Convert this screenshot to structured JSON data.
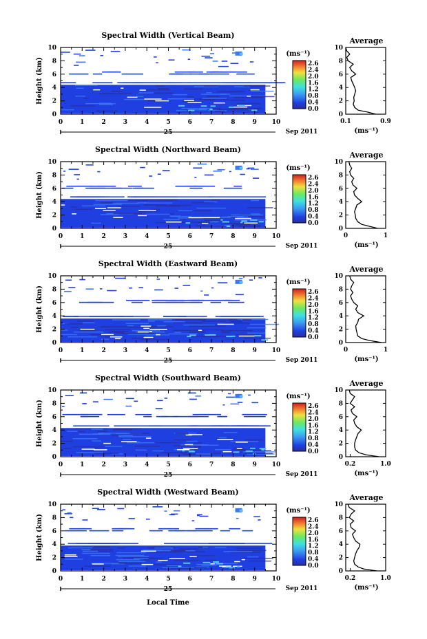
{
  "figure": {
    "x_axis_label": "Local Time",
    "date_label": "25",
    "month_year": "Sep 2011",
    "y_axis_label": "Height (km)",
    "unit_label": "(ms⁻¹)",
    "average_title": "Average",
    "colorbar_ticks": [
      "2.6",
      "2.4",
      "2.0",
      "1.6",
      "1.2",
      "0.8",
      "0.4",
      "0.0"
    ],
    "x_ticks": [
      "0",
      "1",
      "2",
      "3",
      "4",
      "5",
      "6",
      "7",
      "8",
      "9",
      "10"
    ],
    "y_ticks": [
      "0",
      "2",
      "4",
      "6",
      "8",
      "10"
    ],
    "colors": {
      "low": "#1f3fe0",
      "mid": "#3c78f0",
      "cyan": "#58c8f0",
      "band_dark": "#2a2e9a",
      "background": "#ffffff"
    }
  },
  "chart_data": [
    {
      "type": "heatmap",
      "title": "Spectral Width (Vertical Beam)",
      "x_range": [
        0,
        10
      ],
      "y_range": [
        0,
        10
      ],
      "data_extent_hours": [
        0,
        9.5
      ],
      "dense_layer_top_km": 4.4,
      "colorbar_range": [
        0,
        2.8
      ],
      "average_profile": {
        "title": "Average",
        "xlabel": "(ms⁻¹)",
        "x_ticks": [
          "0.1",
          "0.9"
        ],
        "x_range": [
          0.1,
          0.9
        ],
        "height_km": [
          0,
          0.3,
          0.6,
          1,
          1.5,
          2,
          2.5,
          3,
          3.5,
          4,
          4.5,
          5,
          5.5,
          6,
          6.5,
          7,
          7.5,
          8,
          8.5,
          9,
          9.5,
          10
        ],
        "width_ms": [
          0.7,
          0.55,
          0.35,
          0.28,
          0.25,
          0.27,
          0.26,
          0.28,
          0.3,
          0.28,
          0.25,
          0.22,
          0.2,
          0.3,
          0.22,
          0.18,
          0.25,
          0.15,
          0.12,
          0.18,
          0.12,
          0.1
        ]
      }
    },
    {
      "type": "heatmap",
      "title": "Spectral Width (Northward Beam)",
      "x_range": [
        0,
        10
      ],
      "y_range": [
        0,
        10
      ],
      "data_extent_hours": [
        0,
        9.5
      ],
      "dense_layer_top_km": 4.4,
      "colorbar_range": [
        0,
        2.8
      ],
      "average_profile": {
        "title": "Average",
        "xlabel": "(ms⁻¹)",
        "x_ticks": [
          "0",
          "1"
        ],
        "x_range": [
          0,
          1
        ],
        "height_km": [
          0,
          0.3,
          0.6,
          1,
          1.5,
          2,
          2.5,
          3,
          3.5,
          4,
          4.5,
          5,
          5.5,
          6,
          6.5,
          7,
          7.5,
          8,
          8.5,
          9,
          9.5,
          10
        ],
        "width_ms": [
          0.8,
          0.6,
          0.4,
          0.3,
          0.25,
          0.24,
          0.22,
          0.25,
          0.28,
          0.4,
          0.3,
          0.22,
          0.2,
          0.28,
          0.18,
          0.15,
          0.2,
          0.12,
          0.1,
          0.15,
          0.1,
          0.08
        ]
      }
    },
    {
      "type": "heatmap",
      "title": "Spectral Width (Eastward Beam)",
      "x_range": [
        0,
        10
      ],
      "y_range": [
        0,
        10
      ],
      "data_extent_hours": [
        0,
        9.5
      ],
      "dense_layer_top_km": 3.6,
      "colorbar_range": [
        0,
        2.8
      ],
      "average_profile": {
        "title": "Average",
        "xlabel": "(ms⁻¹)",
        "x_ticks": [
          "0",
          "1"
        ],
        "x_range": [
          0,
          1
        ],
        "height_km": [
          0,
          0.3,
          0.6,
          1,
          1.5,
          2,
          2.5,
          3,
          3.5,
          4,
          4.5,
          5,
          5.5,
          6,
          6.5,
          7,
          7.5,
          8,
          8.5,
          9,
          9.5,
          10
        ],
        "width_ms": [
          0.9,
          0.6,
          0.4,
          0.3,
          0.28,
          0.26,
          0.25,
          0.3,
          0.32,
          0.45,
          0.3,
          0.25,
          0.3,
          0.2,
          0.15,
          0.12,
          0.18,
          0.12,
          0.15,
          0.2,
          0.12,
          0.1
        ]
      }
    },
    {
      "type": "heatmap",
      "title": "Spectral Width (Southward Beam)",
      "x_range": [
        0,
        10
      ],
      "y_range": [
        0,
        10
      ],
      "data_extent_hours": [
        0,
        9.5
      ],
      "dense_layer_top_km": 4.3,
      "colorbar_range": [
        0,
        2.8
      ],
      "average_profile": {
        "title": "Average",
        "xlabel": "(ms⁻¹)",
        "x_ticks": [
          "0.2",
          "1.0"
        ],
        "x_range": [
          0.1,
          1.0
        ],
        "height_km": [
          0,
          0.3,
          0.6,
          1,
          1.5,
          2,
          2.5,
          3,
          3.5,
          4,
          4.5,
          5,
          5.5,
          6,
          6.5,
          7,
          7.5,
          8,
          8.5,
          9,
          9.5,
          10
        ],
        "width_ms": [
          0.85,
          0.55,
          0.4,
          0.32,
          0.3,
          0.3,
          0.32,
          0.35,
          0.38,
          0.45,
          0.35,
          0.3,
          0.28,
          0.35,
          0.25,
          0.22,
          0.3,
          0.2,
          0.25,
          0.3,
          0.2,
          0.18
        ]
      }
    },
    {
      "type": "heatmap",
      "title": "Spectral Width (Westward Beam)",
      "x_range": [
        0,
        10
      ],
      "y_range": [
        0,
        10
      ],
      "data_extent_hours": [
        0,
        9.5
      ],
      "dense_layer_top_km": 3.8,
      "colorbar_range": [
        0,
        2.8
      ],
      "average_profile": {
        "title": "Average",
        "xlabel": "(ms⁻¹)",
        "x_ticks": [
          "0.2",
          "1.0"
        ],
        "x_range": [
          0.1,
          1.0
        ],
        "height_km": [
          0,
          0.3,
          0.6,
          1,
          1.5,
          2,
          2.5,
          3,
          3.5,
          4,
          4.5,
          5,
          5.5,
          6,
          6.5,
          7,
          7.5,
          8,
          8.5,
          9,
          9.5,
          10
        ],
        "width_ms": [
          0.8,
          0.5,
          0.38,
          0.3,
          0.28,
          0.3,
          0.32,
          0.35,
          0.4,
          0.42,
          0.32,
          0.28,
          0.25,
          0.32,
          0.22,
          0.2,
          0.28,
          0.18,
          0.22,
          0.3,
          0.18,
          0.15
        ]
      }
    }
  ]
}
